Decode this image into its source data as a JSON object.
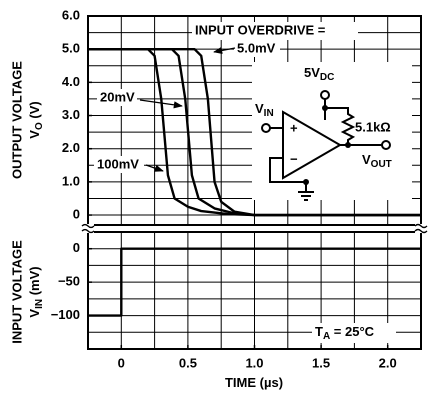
{
  "chart_data": {
    "type": "line",
    "xlabel": {
      "text": "TIME (",
      "unit": "µs",
      "rest": ")"
    },
    "xlim": [
      -0.25,
      2.25
    ],
    "xticks": [
      0,
      0.5,
      {
        "value": 1,
        "label": "1.0"
      },
      1.5,
      {
        "value": 2,
        "label": "2.0"
      }
    ],
    "xgrid": [
      0,
      0.25,
      0.5,
      0.75,
      1,
      1.25,
      1.5,
      1.75,
      2
    ],
    "panels": [
      {
        "ylabel": {
          "line1": "OUTPUT VOLTAGE",
          "text": "V",
          "sub": "O",
          "rest": " (V)"
        },
        "ylim": [
          -0.3,
          6
        ],
        "yticks": [
          0,
          {
            "value": 1,
            "label": "1.0"
          },
          {
            "value": 2,
            "label": "2.0"
          },
          {
            "value": 3,
            "label": "3.0"
          },
          {
            "value": 4,
            "label": "4.0"
          },
          {
            "value": 5,
            "label": "5.0"
          },
          {
            "value": 6,
            "label": "6.0"
          }
        ],
        "ygrid": [
          0,
          0.5,
          1,
          1.5,
          2,
          2.5,
          3,
          3.5,
          4,
          4.5,
          5,
          5.5
        ],
        "annotation": "INPUT OVERDRIVE =",
        "series": [
          {
            "name": "100mV",
            "color": "#000000",
            "x": [
              -0.25,
              0.2,
              0.25,
              0.3,
              0.35,
              0.4,
              0.5,
              0.6,
              0.8,
              1.0,
              2.25
            ],
            "values": [
              5,
              5,
              4.8,
              3.5,
              1.2,
              0.5,
              0.25,
              0.12,
              0.03,
              0,
              0
            ]
          },
          {
            "name": "20mV",
            "color": "#000000",
            "x": [
              -0.25,
              0.38,
              0.43,
              0.48,
              0.53,
              0.58,
              0.7,
              0.85,
              1.0,
              2.25
            ],
            "values": [
              5,
              5,
              4.8,
              3.5,
              1.2,
              0.5,
              0.2,
              0.05,
              0,
              0
            ]
          },
          {
            "name": "5.0mV",
            "color": "#000000",
            "x": [
              -0.25,
              0.55,
              0.6,
              0.65,
              0.7,
              0.75,
              0.85,
              1.0,
              2.25
            ],
            "values": [
              5,
              5,
              4.8,
              3.5,
              1.0,
              0.4,
              0.1,
              0,
              0
            ]
          }
        ]
      },
      {
        "ylabel": {
          "line1": "INPUT VOLTAGE",
          "text": "V",
          "sub": "IN",
          "rest": " (mV)"
        },
        "ylim": [
          -150,
          25
        ],
        "yticks": [
          0,
          {
            "value": -50,
            "label": "−50"
          },
          {
            "value": -100,
            "label": "−100"
          }
        ],
        "ygrid": [
          -125,
          -100,
          -75,
          -50,
          -25,
          0
        ],
        "annotation": {
          "text": "T",
          "sub": "A",
          "rest": " = 25°C"
        },
        "series": [
          {
            "color": "#000000",
            "x": [
              -0.25,
              0,
              0,
              2.25
            ],
            "values": [
              -100,
              -100,
              0,
              0
            ]
          }
        ]
      }
    ],
    "circuit": {
      "supply": {
        "text": "5V",
        "sub": "DC"
      },
      "input": {
        "text": "V",
        "sub": "IN"
      },
      "resistor": "5.1kΩ",
      "output": {
        "text": "V",
        "sub": "OUT"
      },
      "plus": "+",
      "minus": "−"
    }
  }
}
